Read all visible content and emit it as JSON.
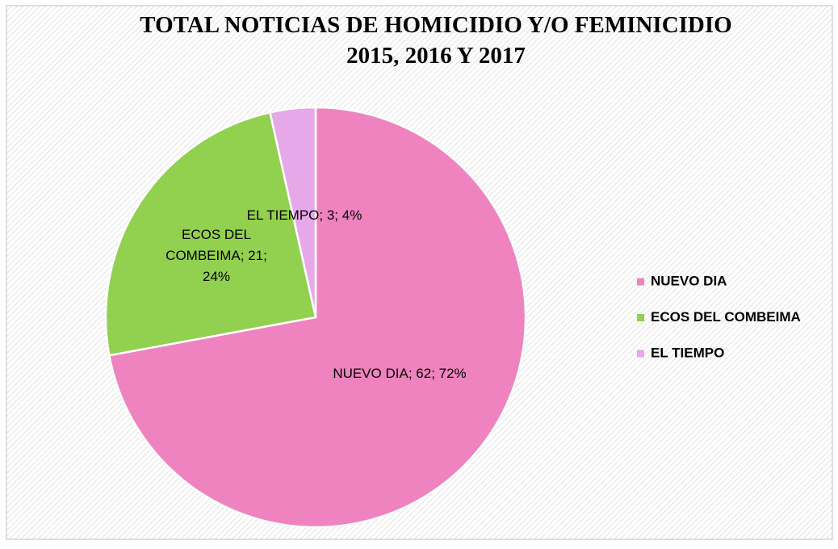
{
  "chart_data": {
    "type": "pie",
    "title": "TOTAL NOTICIAS DE HOMICIDIO Y/O FEMINICIDIO",
    "subtitle": "2015, 2016 Y 2017",
    "categories": [
      "NUEVO DIA",
      "ECOS DEL COMBEIMA",
      "EL TIEMPO"
    ],
    "values": [
      62,
      21,
      3
    ],
    "value_labels": [
      "NUEVO DIA; 62; 72%",
      "ECOS DEL COMBEIMA; 21; 24%",
      "EL TIEMPO; 3; 4%"
    ],
    "colors": [
      "#ef83bf",
      "#92d050",
      "#e6a8e8"
    ],
    "legend": "right"
  }
}
